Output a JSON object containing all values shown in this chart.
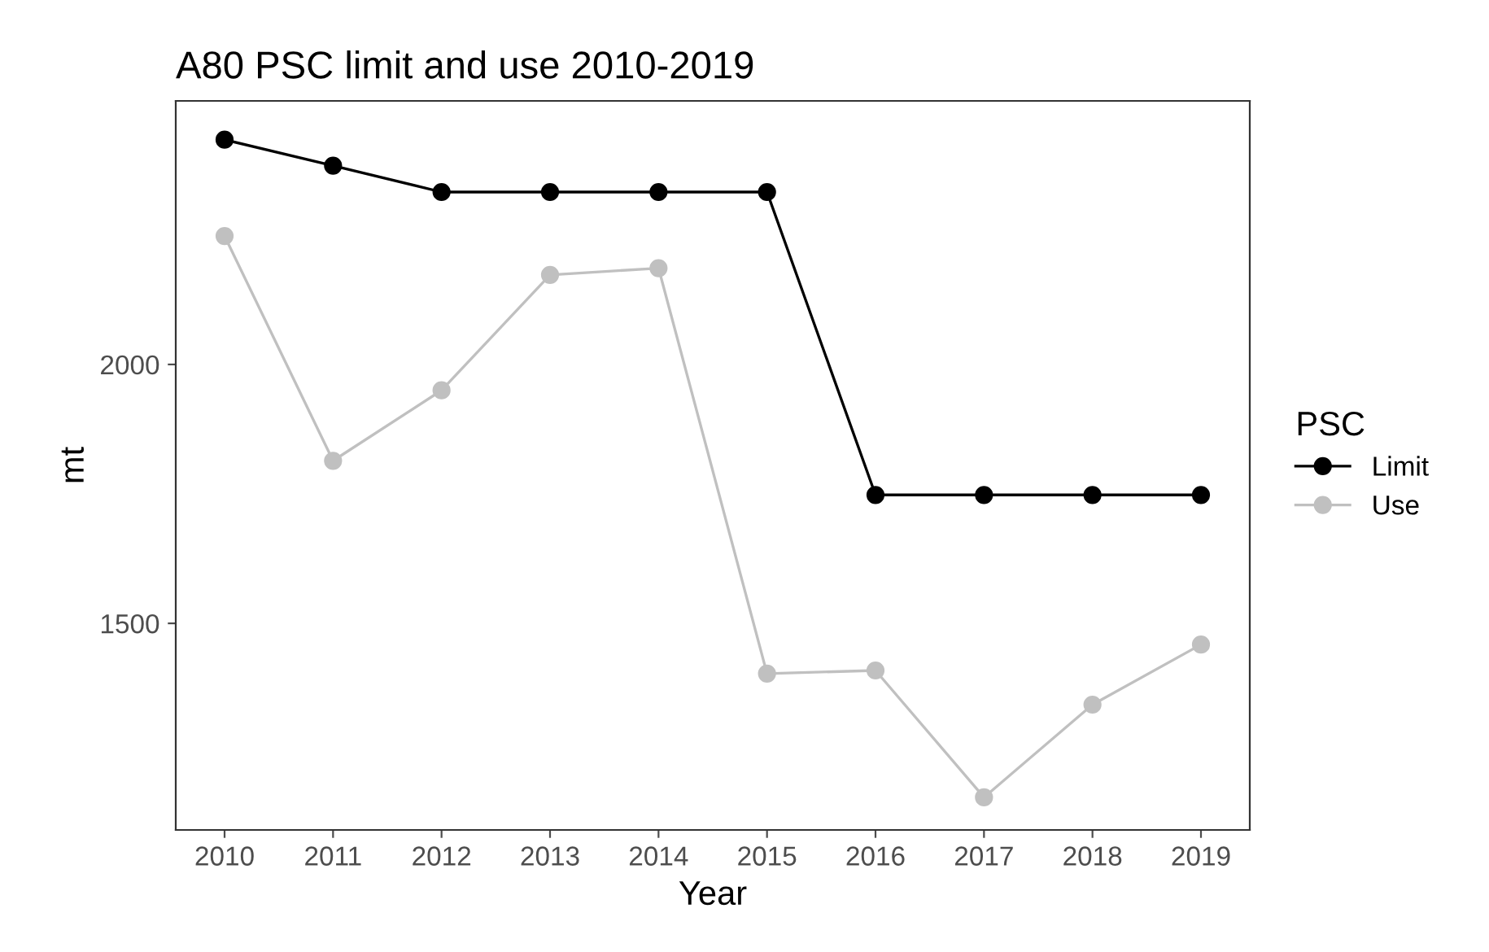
{
  "chart_data": {
    "type": "line",
    "title": "A80 PSC limit and use 2010-2019",
    "xlabel": "Year",
    "ylabel": "mt",
    "legend_title": "PSC",
    "x": [
      2010,
      2011,
      2012,
      2013,
      2014,
      2015,
      2016,
      2017,
      2018,
      2019
    ],
    "series": [
      {
        "name": "Limit",
        "color": "#000000",
        "values": [
          2434,
          2384,
          2333,
          2333,
          2333,
          2333,
          1748,
          1748,
          1748,
          1748
        ]
      },
      {
        "name": "Use",
        "color": "#c0c0c0",
        "values": [
          2248,
          1814,
          1950,
          2173,
          2186,
          1403,
          1409,
          1164,
          1343,
          1459
        ]
      }
    ],
    "xlim": [
      2009.55,
      2019.45
    ],
    "ylim": [
      1101,
      2509
    ],
    "xticks": [
      2010,
      2011,
      2012,
      2013,
      2014,
      2015,
      2016,
      2017,
      2018,
      2019
    ],
    "yticks": [
      1500,
      2000
    ],
    "grid": false,
    "legend": "right",
    "marker": "circle",
    "line_style": "solid"
  }
}
